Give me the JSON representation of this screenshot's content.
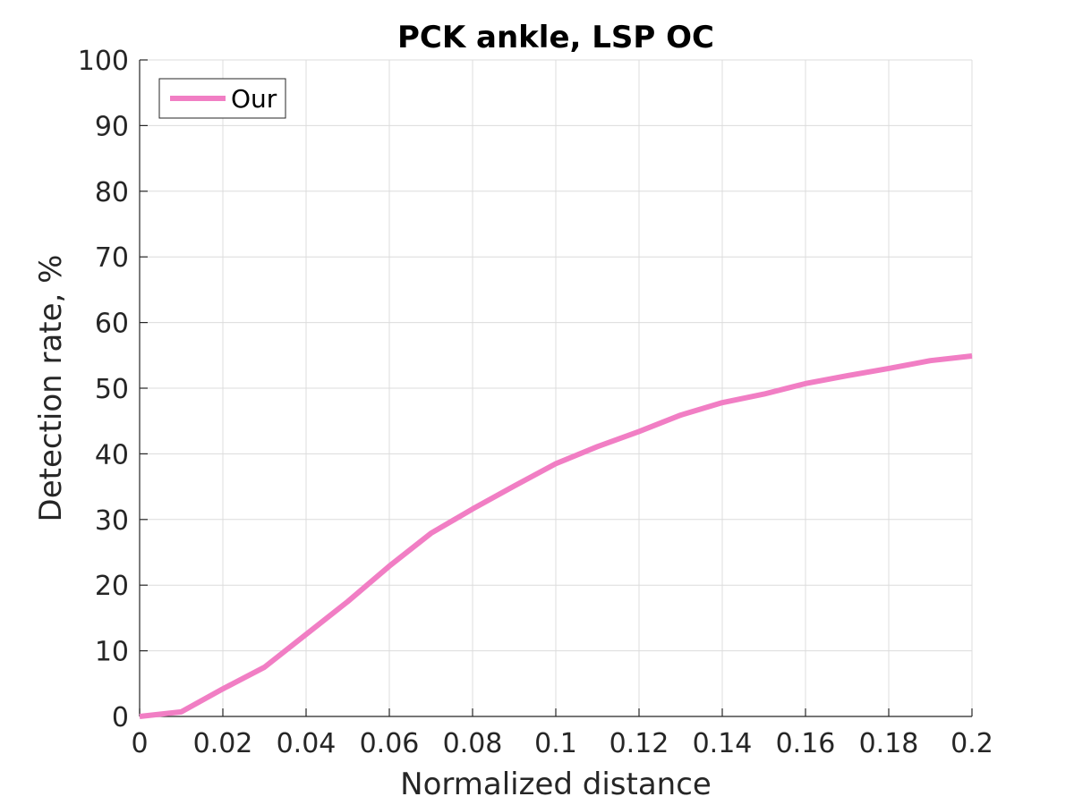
{
  "chart_data": {
    "type": "line",
    "title": "PCK ankle, LSP OC",
    "xlabel": "Normalized distance",
    "ylabel": "Detection rate, %",
    "xlim": [
      0,
      0.2
    ],
    "ylim": [
      0,
      100
    ],
    "xticks": [
      0,
      0.02,
      0.04,
      0.06,
      0.08,
      0.1,
      0.12,
      0.14,
      0.16,
      0.18,
      0.2
    ],
    "xtick_labels": [
      "0",
      "0.02",
      "0.04",
      "0.06",
      "0.08",
      "0.1",
      "0.12",
      "0.14",
      "0.16",
      "0.18",
      "0.2"
    ],
    "yticks": [
      0,
      10,
      20,
      30,
      40,
      50,
      60,
      70,
      80,
      90,
      100
    ],
    "ytick_labels": [
      "0",
      "10",
      "20",
      "30",
      "40",
      "50",
      "60",
      "70",
      "80",
      "90",
      "100"
    ],
    "grid": true,
    "legend_position": "top-left",
    "series": [
      {
        "name": "Our",
        "color": "#f17ec4",
        "x": [
          0,
          0.01,
          0.02,
          0.03,
          0.04,
          0.05,
          0.06,
          0.07,
          0.08,
          0.09,
          0.1,
          0.11,
          0.12,
          0.13,
          0.14,
          0.15,
          0.16,
          0.17,
          0.18,
          0.19,
          0.2
        ],
        "y": [
          0,
          0.7,
          4.2,
          7.5,
          12.5,
          17.5,
          22.9,
          27.9,
          31.6,
          35.1,
          38.5,
          41.1,
          43.4,
          45.9,
          47.8,
          49.1,
          50.7,
          51.9,
          53.0,
          54.2,
          54.9
        ]
      }
    ]
  }
}
